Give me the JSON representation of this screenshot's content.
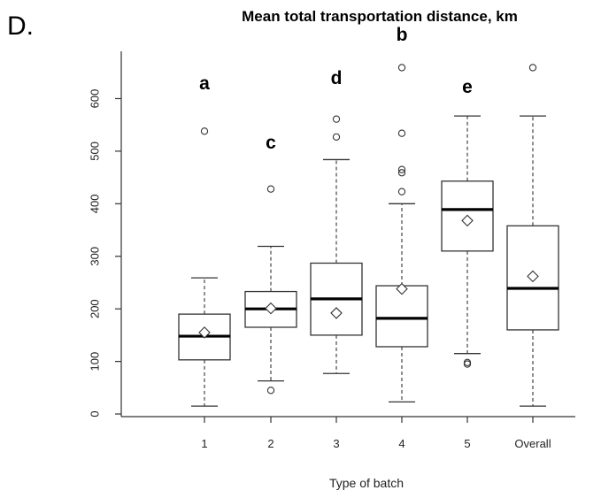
{
  "chart_data": {
    "type": "boxplot",
    "panel_label": "D.",
    "title": "Mean total transportation distance, km",
    "xlabel": "Type of batch",
    "ylabel": "",
    "ylim": [
      -5,
      690
    ],
    "yticks": [
      0,
      100,
      200,
      300,
      400,
      500,
      600
    ],
    "categories": [
      "1",
      "2",
      "3",
      "4",
      "5",
      "Overall"
    ],
    "boxes": [
      {
        "category": "1",
        "whisker_low": 15,
        "q1": 103,
        "median": 148,
        "q3": 190,
        "whisker_high": 259,
        "mean": 155,
        "outliers": [
          538
        ],
        "letter": "a"
      },
      {
        "category": "2",
        "whisker_low": 63,
        "q1": 165,
        "median": 200,
        "q3": 233,
        "whisker_high": 319,
        "mean": 201,
        "outliers": [
          45,
          428
        ],
        "letter": "c"
      },
      {
        "category": "3",
        "whisker_low": 77,
        "q1": 150,
        "median": 219,
        "q3": 287,
        "whisker_high": 484,
        "mean": 192,
        "outliers": [
          527,
          561
        ],
        "letter": "d"
      },
      {
        "category": "4",
        "whisker_low": 23,
        "q1": 128,
        "median": 182,
        "q3": 244,
        "whisker_high": 400,
        "mean": 238,
        "outliers": [
          423,
          459,
          465,
          534,
          659
        ],
        "letter": "b"
      },
      {
        "category": "5",
        "whisker_low": 115,
        "q1": 310,
        "median": 389,
        "q3": 443,
        "whisker_high": 567,
        "mean": 368,
        "outliers": [
          95,
          98
        ],
        "letter": "e"
      },
      {
        "category": "Overall",
        "whisker_low": 15,
        "q1": 160,
        "median": 239,
        "q3": 358,
        "whisker_high": 567,
        "mean": 262,
        "outliers": [
          659
        ],
        "letter": ""
      }
    ],
    "grid": false,
    "legend": "none"
  }
}
